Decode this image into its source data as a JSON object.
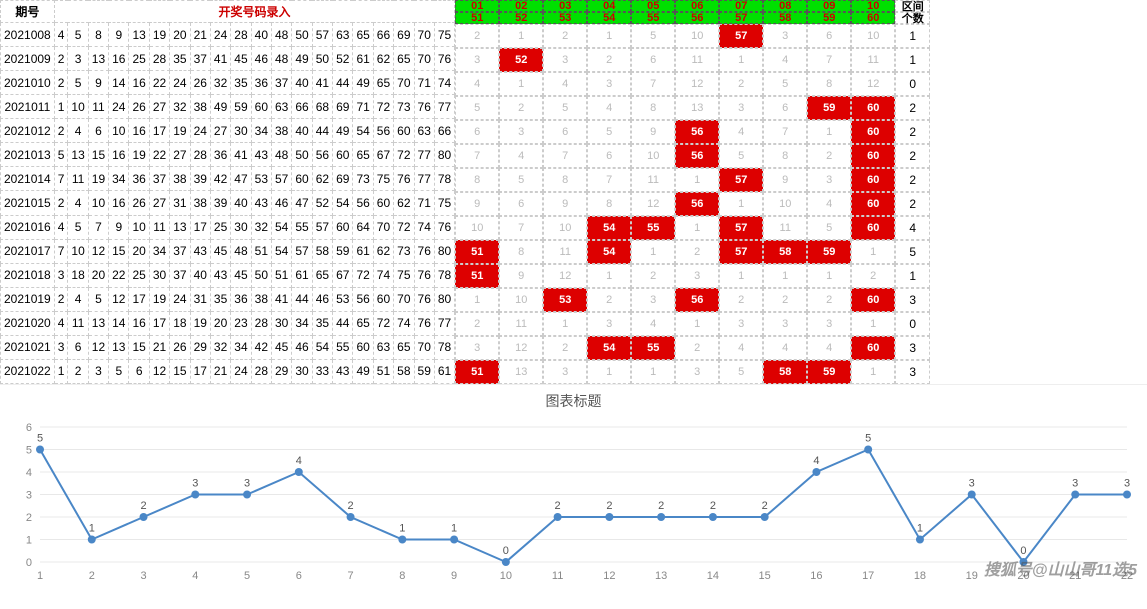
{
  "header": {
    "period_label": "期号",
    "title": "开奖号码录入",
    "range_label": "区间",
    "count_label": "个数"
  },
  "right_header_top": [
    "01",
    "02",
    "03",
    "04",
    "05",
    "06",
    "07",
    "08",
    "09",
    "10"
  ],
  "right_header_bot": [
    "51",
    "52",
    "53",
    "54",
    "55",
    "56",
    "57",
    "58",
    "59",
    "60"
  ],
  "rows": [
    {
      "period": "2021008",
      "nums": [
        "4",
        "5",
        "8",
        "9",
        "13",
        "19",
        "20",
        "21",
        "24",
        "28",
        "40",
        "48",
        "50",
        "57",
        "63",
        "65",
        "66",
        "69",
        "70",
        "75"
      ],
      "right": [
        {
          "v": "2"
        },
        {
          "v": "1"
        },
        {
          "v": "2"
        },
        {
          "v": "1"
        },
        {
          "v": "5"
        },
        {
          "v": "10"
        },
        {
          "v": "57",
          "h": 1
        },
        {
          "v": "3"
        },
        {
          "v": "6"
        },
        {
          "v": "10"
        }
      ],
      "count": "1"
    },
    {
      "period": "2021009",
      "nums": [
        "2",
        "3",
        "13",
        "16",
        "25",
        "28",
        "35",
        "37",
        "41",
        "45",
        "46",
        "48",
        "49",
        "50",
        "52",
        "61",
        "62",
        "65",
        "70",
        "76"
      ],
      "right": [
        {
          "v": "3"
        },
        {
          "v": "52",
          "h": 1
        },
        {
          "v": "3"
        },
        {
          "v": "2"
        },
        {
          "v": "6"
        },
        {
          "v": "11"
        },
        {
          "v": "1"
        },
        {
          "v": "4"
        },
        {
          "v": "7"
        },
        {
          "v": "11"
        }
      ],
      "count": "1"
    },
    {
      "period": "2021010",
      "nums": [
        "2",
        "5",
        "9",
        "14",
        "16",
        "22",
        "24",
        "26",
        "32",
        "35",
        "36",
        "37",
        "40",
        "41",
        "44",
        "49",
        "65",
        "70",
        "71",
        "74"
      ],
      "right": [
        {
          "v": "4"
        },
        {
          "v": "1"
        },
        {
          "v": "4"
        },
        {
          "v": "3"
        },
        {
          "v": "7"
        },
        {
          "v": "12"
        },
        {
          "v": "2"
        },
        {
          "v": "5"
        },
        {
          "v": "8"
        },
        {
          "v": "12"
        }
      ],
      "count": "0"
    },
    {
      "period": "2021011",
      "nums": [
        "1",
        "10",
        "11",
        "24",
        "26",
        "27",
        "32",
        "38",
        "49",
        "59",
        "60",
        "63",
        "66",
        "68",
        "69",
        "71",
        "72",
        "73",
        "76",
        "77"
      ],
      "right": [
        {
          "v": "5"
        },
        {
          "v": "2"
        },
        {
          "v": "5"
        },
        {
          "v": "4"
        },
        {
          "v": "8"
        },
        {
          "v": "13"
        },
        {
          "v": "3"
        },
        {
          "v": "6"
        },
        {
          "v": "59",
          "h": 1
        },
        {
          "v": "60",
          "h": 1
        }
      ],
      "count": "2"
    },
    {
      "period": "2021012",
      "nums": [
        "2",
        "4",
        "6",
        "10",
        "16",
        "17",
        "19",
        "24",
        "27",
        "30",
        "34",
        "38",
        "40",
        "44",
        "49",
        "54",
        "56",
        "60",
        "63",
        "66"
      ],
      "right": [
        {
          "v": "6"
        },
        {
          "v": "3"
        },
        {
          "v": "6"
        },
        {
          "v": "5"
        },
        {
          "v": "9"
        },
        {
          "v": "56",
          "h": 1
        },
        {
          "v": "4"
        },
        {
          "v": "7"
        },
        {
          "v": "1"
        },
        {
          "v": "60",
          "h": 1
        }
      ],
      "count": "2"
    },
    {
      "period": "2021013",
      "nums": [
        "5",
        "13",
        "15",
        "16",
        "19",
        "22",
        "27",
        "28",
        "36",
        "41",
        "43",
        "48",
        "50",
        "56",
        "60",
        "65",
        "67",
        "72",
        "77",
        "80"
      ],
      "right": [
        {
          "v": "7"
        },
        {
          "v": "4"
        },
        {
          "v": "7"
        },
        {
          "v": "6"
        },
        {
          "v": "10"
        },
        {
          "v": "56",
          "h": 1
        },
        {
          "v": "5"
        },
        {
          "v": "8"
        },
        {
          "v": "2"
        },
        {
          "v": "60",
          "h": 1
        }
      ],
      "count": "2"
    },
    {
      "period": "2021014",
      "nums": [
        "7",
        "11",
        "19",
        "34",
        "36",
        "37",
        "38",
        "39",
        "42",
        "47",
        "53",
        "57",
        "60",
        "62",
        "69",
        "73",
        "75",
        "76",
        "77",
        "78"
      ],
      "right": [
        {
          "v": "8"
        },
        {
          "v": "5"
        },
        {
          "v": "8"
        },
        {
          "v": "7"
        },
        {
          "v": "11"
        },
        {
          "v": "1"
        },
        {
          "v": "57",
          "h": 1
        },
        {
          "v": "9"
        },
        {
          "v": "3"
        },
        {
          "v": "60",
          "h": 1
        }
      ],
      "count": "2"
    },
    {
      "period": "2021015",
      "nums": [
        "2",
        "4",
        "10",
        "16",
        "26",
        "27",
        "31",
        "38",
        "39",
        "40",
        "43",
        "46",
        "47",
        "52",
        "54",
        "56",
        "60",
        "62",
        "71",
        "75"
      ],
      "right": [
        {
          "v": "9"
        },
        {
          "v": "6"
        },
        {
          "v": "9"
        },
        {
          "v": "8"
        },
        {
          "v": "12"
        },
        {
          "v": "56",
          "h": 1
        },
        {
          "v": "1"
        },
        {
          "v": "10"
        },
        {
          "v": "4"
        },
        {
          "v": "60",
          "h": 1
        }
      ],
      "count": "2"
    },
    {
      "period": "2021016",
      "nums": [
        "4",
        "5",
        "7",
        "9",
        "10",
        "11",
        "13",
        "17",
        "25",
        "30",
        "32",
        "54",
        "55",
        "57",
        "60",
        "64",
        "70",
        "72",
        "74",
        "76"
      ],
      "right": [
        {
          "v": "10"
        },
        {
          "v": "7"
        },
        {
          "v": "10"
        },
        {
          "v": "54",
          "h": 1
        },
        {
          "v": "55",
          "h": 1
        },
        {
          "v": "1"
        },
        {
          "v": "57",
          "h": 1
        },
        {
          "v": "11"
        },
        {
          "v": "5"
        },
        {
          "v": "60",
          "h": 1
        }
      ],
      "count": "4"
    },
    {
      "period": "2021017",
      "nums": [
        "7",
        "10",
        "12",
        "15",
        "20",
        "34",
        "37",
        "43",
        "45",
        "48",
        "51",
        "54",
        "57",
        "58",
        "59",
        "61",
        "62",
        "73",
        "76",
        "80"
      ],
      "right": [
        {
          "v": "51",
          "h": 1
        },
        {
          "v": "8"
        },
        {
          "v": "11"
        },
        {
          "v": "54",
          "h": 1
        },
        {
          "v": "1"
        },
        {
          "v": "2"
        },
        {
          "v": "57",
          "h": 1
        },
        {
          "v": "58",
          "h": 1
        },
        {
          "v": "59",
          "h": 1
        },
        {
          "v": "1"
        }
      ],
      "count": "5"
    },
    {
      "period": "2021018",
      "nums": [
        "3",
        "18",
        "20",
        "22",
        "25",
        "30",
        "37",
        "40",
        "43",
        "45",
        "50",
        "51",
        "61",
        "65",
        "67",
        "72",
        "74",
        "75",
        "76",
        "78"
      ],
      "right": [
        {
          "v": "51",
          "h": 1
        },
        {
          "v": "9"
        },
        {
          "v": "12"
        },
        {
          "v": "1"
        },
        {
          "v": "2"
        },
        {
          "v": "3"
        },
        {
          "v": "1"
        },
        {
          "v": "1"
        },
        {
          "v": "1"
        },
        {
          "v": "2"
        }
      ],
      "count": "1"
    },
    {
      "period": "2021019",
      "nums": [
        "2",
        "4",
        "5",
        "12",
        "17",
        "19",
        "24",
        "31",
        "35",
        "36",
        "38",
        "41",
        "44",
        "46",
        "53",
        "56",
        "60",
        "70",
        "76",
        "80"
      ],
      "right": [
        {
          "v": "1"
        },
        {
          "v": "10"
        },
        {
          "v": "53",
          "h": 1
        },
        {
          "v": "2"
        },
        {
          "v": "3"
        },
        {
          "v": "56",
          "h": 1
        },
        {
          "v": "2"
        },
        {
          "v": "2"
        },
        {
          "v": "2"
        },
        {
          "v": "60",
          "h": 1
        }
      ],
      "count": "3"
    },
    {
      "period": "2021020",
      "nums": [
        "4",
        "11",
        "13",
        "14",
        "16",
        "17",
        "18",
        "19",
        "20",
        "23",
        "28",
        "30",
        "34",
        "35",
        "44",
        "65",
        "72",
        "74",
        "76",
        "77"
      ],
      "right": [
        {
          "v": "2"
        },
        {
          "v": "11"
        },
        {
          "v": "1"
        },
        {
          "v": "3"
        },
        {
          "v": "4"
        },
        {
          "v": "1"
        },
        {
          "v": "3"
        },
        {
          "v": "3"
        },
        {
          "v": "3"
        },
        {
          "v": "1"
        }
      ],
      "count": "0"
    },
    {
      "period": "2021021",
      "nums": [
        "3",
        "6",
        "12",
        "13",
        "15",
        "21",
        "26",
        "29",
        "32",
        "34",
        "42",
        "45",
        "46",
        "54",
        "55",
        "60",
        "63",
        "65",
        "70",
        "78"
      ],
      "right": [
        {
          "v": "3"
        },
        {
          "v": "12"
        },
        {
          "v": "2"
        },
        {
          "v": "54",
          "h": 1
        },
        {
          "v": "55",
          "h": 1
        },
        {
          "v": "2"
        },
        {
          "v": "4"
        },
        {
          "v": "4"
        },
        {
          "v": "4"
        },
        {
          "v": "60",
          "h": 1
        }
      ],
      "count": "3"
    },
    {
      "period": "2021022",
      "nums": [
        "1",
        "2",
        "3",
        "5",
        "6",
        "12",
        "15",
        "17",
        "21",
        "24",
        "28",
        "29",
        "30",
        "33",
        "43",
        "49",
        "51",
        "58",
        "59",
        "61"
      ],
      "right": [
        {
          "v": "51",
          "h": 1
        },
        {
          "v": "13"
        },
        {
          "v": "3"
        },
        {
          "v": "1"
        },
        {
          "v": "1"
        },
        {
          "v": "3"
        },
        {
          "v": "5"
        },
        {
          "v": "58",
          "h": 1
        },
        {
          "v": "59",
          "h": 1
        },
        {
          "v": "1"
        }
      ],
      "count": "3"
    }
  ],
  "chart": {
    "title": "图表标题",
    "type": "line",
    "x_labels": [
      "1",
      "2",
      "3",
      "4",
      "5",
      "6",
      "7",
      "8",
      "9",
      "10",
      "11",
      "12",
      "13",
      "14",
      "15",
      "16",
      "17",
      "18",
      "19",
      "20",
      "21",
      "22"
    ],
    "values": [
      5,
      1,
      2,
      3,
      3,
      4,
      2,
      1,
      1,
      0,
      2,
      2,
      2,
      2,
      2,
      4,
      5,
      1,
      3,
      0,
      3,
      3
    ],
    "y_ticks": [
      0,
      1,
      2,
      3,
      4,
      5,
      6
    ],
    "ylim": [
      0,
      6
    ],
    "line_color": "#4a87c7",
    "marker_color": "#4a87c7",
    "marker_size": 4,
    "line_width": 2,
    "grid_color": "#e8e8e8",
    "background_color": "#ffffff",
    "axis_font_size": 11,
    "label_font_size": 11
  },
  "watermark": "搜狐号@山山哥11选5"
}
